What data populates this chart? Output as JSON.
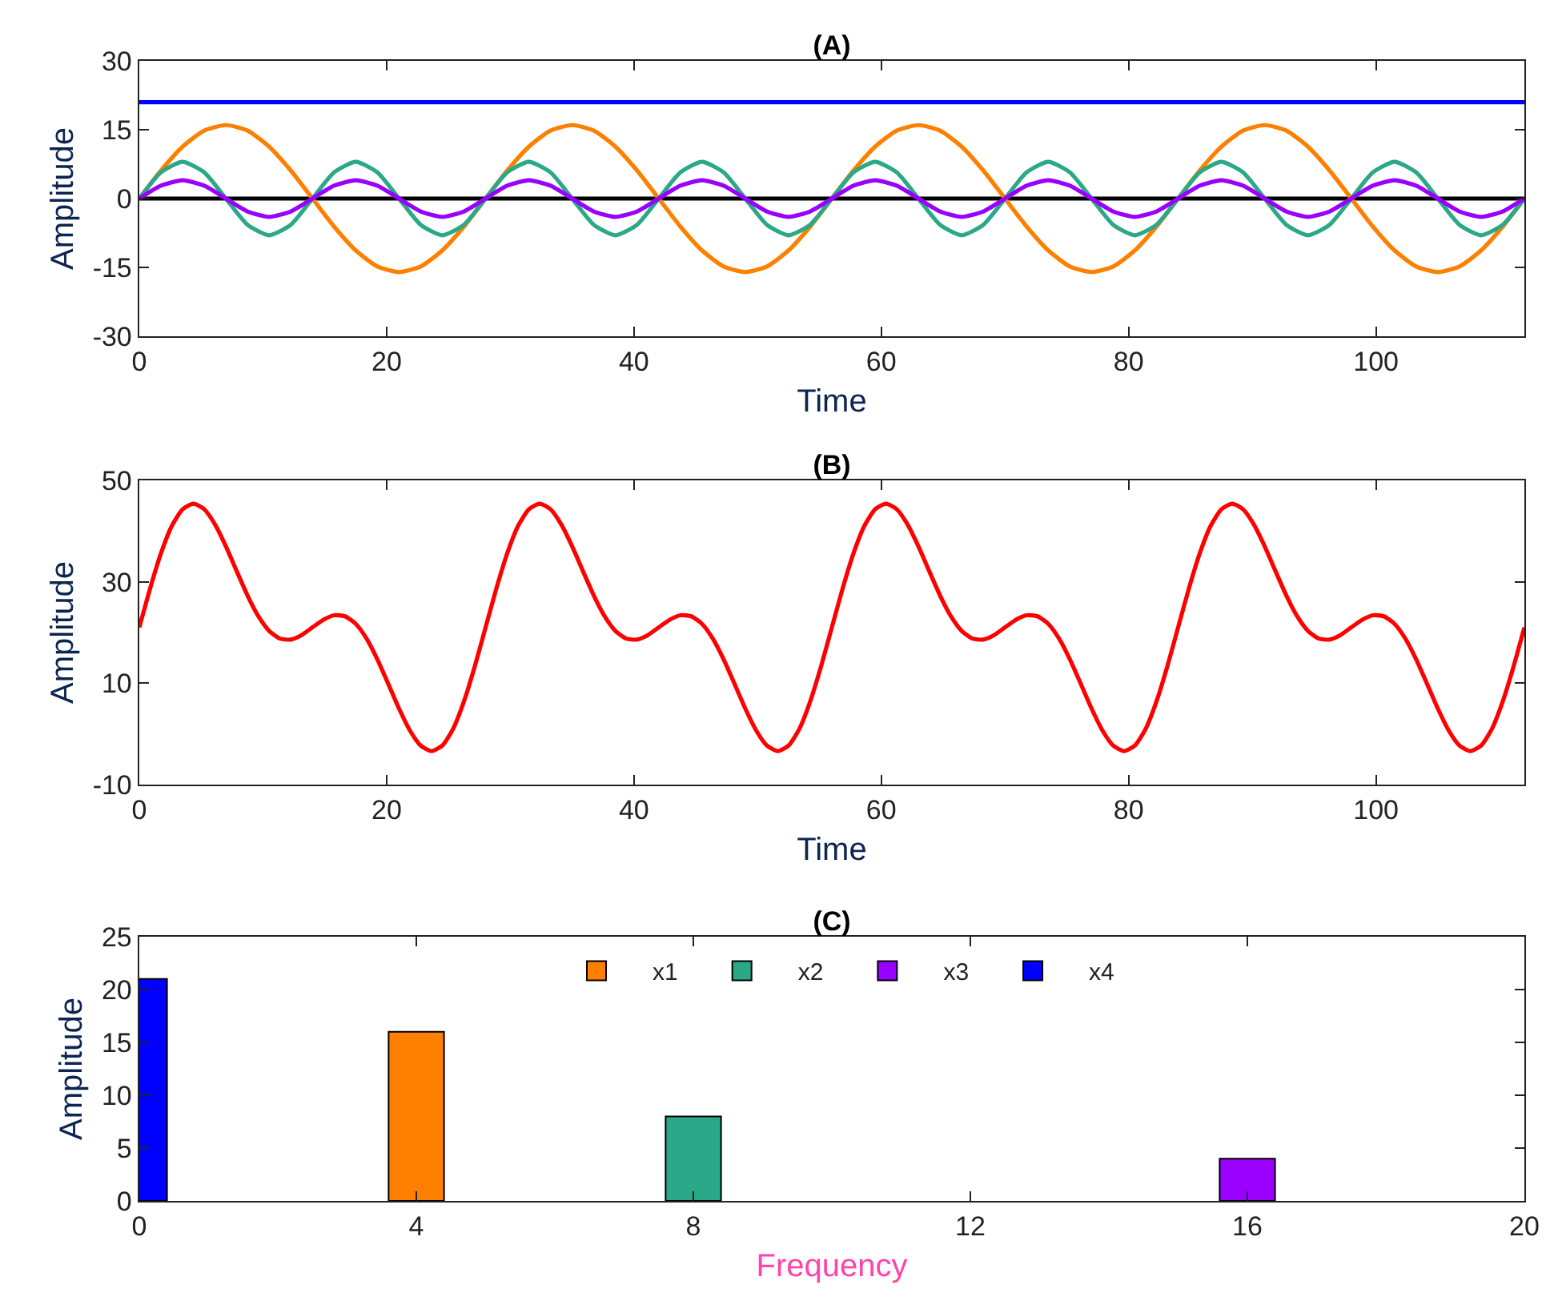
{
  "chart_data": [
    {
      "type": "line",
      "title": "(A)",
      "xlabel": "Time",
      "ylabel": "Amplitude",
      "xlim": [
        0,
        112
      ],
      "xticks": [
        0,
        20,
        40,
        60,
        80,
        100
      ],
      "ylim": [
        -30,
        30
      ],
      "yticks": [
        -30,
        -15,
        0,
        15,
        30
      ],
      "grid": false,
      "legend": false,
      "line_style": "solid",
      "x": [
        0,
        1.75,
        3.5,
        5.25,
        7,
        8.75,
        10.5,
        12.25,
        14,
        15.75,
        17.5,
        19.25,
        21,
        22.75,
        24.5,
        26.25,
        28,
        29.75,
        31.5,
        33.25,
        35,
        36.75,
        38.5,
        40.25,
        42,
        43.75,
        45.5,
        47.25,
        49,
        50.75,
        52.5,
        54.25,
        56,
        57.75,
        59.5,
        61.25,
        63,
        64.75,
        66.5,
        68.25,
        70,
        71.75,
        73.5,
        75.25,
        77,
        78.75,
        80.5,
        82.25,
        84,
        85.75,
        87.5,
        89.25,
        91,
        92.75,
        94.5,
        96.25,
        98,
        99.75,
        101.5,
        103.25,
        105,
        106.75,
        108.5,
        110.25,
        112
      ],
      "ref_lines": [
        {
          "axis": "y",
          "value": 0,
          "color": "#000000"
        }
      ],
      "series": [
        {
          "color": "#0000ff",
          "x": [
            0,
            112
          ],
          "values": [
            21,
            21
          ]
        },
        {
          "color": "#ff8000",
          "values": [
            0,
            6.1,
            11.3,
            14.8,
            16,
            14.8,
            11.3,
            6.1,
            0,
            -6.1,
            -11.3,
            -14.8,
            -16,
            -14.8,
            -11.3,
            -6.1,
            0,
            6.1,
            11.3,
            14.8,
            16,
            14.8,
            11.3,
            6.1,
            0,
            -6.1,
            -11.3,
            -14.8,
            -16,
            -14.8,
            -11.3,
            -6.1,
            0,
            6.1,
            11.3,
            14.8,
            16,
            14.8,
            11.3,
            6.1,
            0,
            -6.1,
            -11.3,
            -14.8,
            -16,
            -14.8,
            -11.3,
            -6.1,
            0,
            6.1,
            11.3,
            14.8,
            16,
            14.8,
            11.3,
            6.1,
            0,
            -6.1,
            -11.3,
            -14.8,
            -16,
            -14.8,
            -11.3,
            -6.1,
            0
          ]
        },
        {
          "color": "#2aa887",
          "values": [
            0,
            5.7,
            8,
            5.7,
            0,
            -5.7,
            -8,
            -5.7,
            0,
            5.7,
            8,
            5.7,
            0,
            -5.7,
            -8,
            -5.7,
            0,
            5.7,
            8,
            5.7,
            0,
            -5.7,
            -8,
            -5.7,
            0,
            5.7,
            8,
            5.7,
            0,
            -5.7,
            -8,
            -5.7,
            0,
            5.7,
            8,
            5.7,
            0,
            -5.7,
            -8,
            -5.7,
            0,
            5.7,
            8,
            5.7,
            0,
            -5.7,
            -8,
            -5.7,
            0,
            5.7,
            8,
            5.7,
            0,
            -5.7,
            -8,
            -5.7,
            0,
            5.7,
            8,
            5.7,
            0,
            -5.7,
            -8,
            -5.7,
            0
          ]
        },
        {
          "color": "#9900ff",
          "values": [
            0,
            2.8,
            4,
            2.8,
            0,
            -2.8,
            -4,
            -2.8,
            0,
            2.8,
            4,
            2.8,
            0,
            -2.8,
            -4,
            -2.8,
            0,
            2.8,
            4,
            2.8,
            0,
            -2.8,
            -4,
            -2.8,
            0,
            2.8,
            4,
            2.8,
            0,
            -2.8,
            -4,
            -2.8,
            0,
            2.8,
            4,
            2.8,
            0,
            -2.8,
            -4,
            -2.8,
            0,
            2.8,
            4,
            2.8,
            0,
            -2.8,
            -4,
            -2.8,
            0,
            2.8,
            4,
            2.8,
            0,
            -2.8,
            -4,
            -2.8,
            0,
            2.8,
            4,
            2.8,
            0,
            -2.8,
            -4,
            -2.8,
            0
          ]
        }
      ]
    },
    {
      "type": "line",
      "title": "(B)",
      "xlabel": "Time",
      "ylabel": "Amplitude",
      "xlim": [
        0,
        112
      ],
      "xticks": [
        0,
        20,
        40,
        60,
        80,
        100
      ],
      "ylim": [
        -10,
        50
      ],
      "yticks": [
        -10,
        10,
        30,
        50
      ],
      "grid": false,
      "legend": false,
      "line_style": "solid",
      "x": [
        0,
        0.875,
        1.75,
        2.625,
        3.5,
        4.375,
        5.25,
        6.125,
        7,
        7.875,
        8.75,
        9.625,
        10.5,
        11.375,
        12.25,
        13.125,
        14,
        14.875,
        15.75,
        16.625,
        17.5,
        18.375,
        19.25,
        20.125,
        21,
        21.875,
        22.75,
        23.625,
        24.5,
        25.375,
        26.25,
        27.125,
        28,
        28.875,
        29.75,
        30.625,
        31.5,
        32.375,
        33.25,
        34.125,
        35,
        35.875,
        36.75,
        37.625,
        38.5,
        39.375,
        40.25,
        41.125,
        42,
        42.875,
        43.75,
        44.625,
        45.5,
        46.375,
        47.25,
        48.125,
        49,
        49.875,
        50.75,
        51.625,
        52.5,
        53.375,
        54.25,
        55.125,
        56,
        56.875,
        57.75,
        58.625,
        59.5,
        60.375,
        61.25,
        62.125,
        63,
        63.875,
        64.75,
        65.625,
        66.5,
        67.375,
        68.25,
        69.125,
        70,
        70.875,
        71.75,
        72.625,
        73.5,
        74.375,
        75.25,
        76.125,
        77,
        77.875,
        78.75,
        79.625,
        80.5,
        81.375,
        82.25,
        83.125,
        84,
        84.875,
        85.75,
        86.625,
        87.5,
        88.375,
        89.25,
        90.125,
        91,
        91.875,
        92.75,
        93.625,
        94.5,
        95.375,
        96.25,
        97.125,
        98,
        98.875,
        99.75,
        100.625,
        101.5,
        102.375,
        103.25,
        104.125,
        105,
        105.875,
        106.75,
        107.625,
        108.5,
        109.375,
        110.25,
        111.125,
        112
      ],
      "series": [
        {
          "color": "#ff0000",
          "values": [
            21,
            28.7,
            35.6,
            41,
            44.3,
            45.4,
            44.3,
            41.3,
            37,
            32.1,
            27.3,
            23.2,
            20.3,
            18.8,
            18.6,
            19.5,
            21,
            22.5,
            23.4,
            23.2,
            21.7,
            18.8,
            14.7,
            9.9,
            5,
            0.7,
            -2.3,
            -3.4,
            -2.3,
            1,
            6.4,
            13.3,
            21,
            28.7,
            35.6,
            41,
            44.3,
            45.4,
            44.3,
            41.3,
            37,
            32.1,
            27.3,
            23.2,
            20.3,
            18.8,
            18.6,
            19.5,
            21,
            22.5,
            23.4,
            23.2,
            21.7,
            18.8,
            14.7,
            9.9,
            5,
            0.7,
            -2.3,
            -3.4,
            -2.3,
            1,
            6.4,
            13.3,
            21,
            28.7,
            35.6,
            41,
            44.3,
            45.4,
            44.3,
            41.3,
            37,
            32.1,
            27.3,
            23.2,
            20.3,
            18.8,
            18.6,
            19.5,
            21,
            22.5,
            23.4,
            23.2,
            21.7,
            18.8,
            14.7,
            9.9,
            5,
            0.7,
            -2.3,
            -3.4,
            -2.3,
            1,
            6.4,
            13.3,
            21,
            28.7,
            35.6,
            41,
            44.3,
            45.4,
            44.3,
            41.3,
            37,
            32.1,
            27.3,
            23.2,
            20.3,
            18.8,
            18.6,
            19.5,
            21,
            22.5,
            23.4,
            23.2,
            21.7,
            18.8,
            14.7,
            9.9,
            5,
            0.7,
            -2.3,
            -3.4,
            -2.3,
            1,
            6.4,
            13.3,
            21
          ]
        }
      ]
    },
    {
      "type": "bar",
      "title": "(C)",
      "xlabel": "Frequency",
      "ylabel": "Amplitude",
      "xlim": [
        0,
        20
      ],
      "xticks": [
        0,
        4,
        8,
        12,
        16,
        20
      ],
      "ylim": [
        0,
        25
      ],
      "yticks": [
        0,
        5,
        10,
        15,
        20,
        25
      ],
      "grid": false,
      "legend": "top",
      "series": [
        {
          "name": "x1",
          "color": "#ff8000",
          "x": [
            4
          ],
          "values": [
            16
          ]
        },
        {
          "name": "x2",
          "color": "#2aa887",
          "x": [
            8
          ],
          "values": [
            8
          ]
        },
        {
          "name": "x3",
          "color": "#9900ff",
          "x": [
            16
          ],
          "values": [
            4
          ]
        },
        {
          "name": "x4",
          "color": "#0000ff",
          "x": [
            0
          ],
          "values": [
            21
          ]
        }
      ]
    }
  ]
}
